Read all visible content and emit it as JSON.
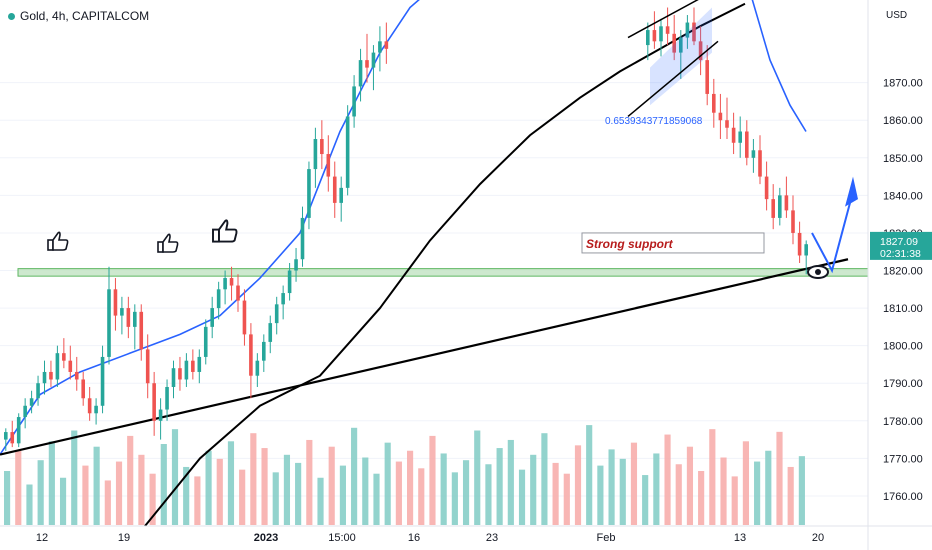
{
  "header": {
    "title": "Gold, 4h, CAPITALCOM",
    "currency": "USD"
  },
  "colors": {
    "up": "#26a69a",
    "down": "#ef5350",
    "ma_blue": "#2962ff",
    "ma_black": "#000000",
    "zone": "#c8e6c9",
    "zone_border": "#4caf50",
    "annotation": "#2962ff",
    "price_tag": "#26a69a"
  },
  "icons": {
    "thumbs": "thumbs-up-icon",
    "eye": "eye-icon"
  },
  "chart_data": {
    "type": "candlestick",
    "title": "Gold, 4h, CAPITALCOM",
    "currency": "USD",
    "ylim": [
      1752,
      1892
    ],
    "y_ticks": [
      1760,
      1770,
      1780,
      1790,
      1800,
      1810,
      1820,
      1830,
      1840,
      1850,
      1860,
      1870
    ],
    "y_tick_labels": [
      "1760.00",
      "1770.00",
      "1780.00",
      "1790.00",
      "1800.00",
      "1810.00",
      "1820.00",
      "1830.00",
      "1840.00",
      "1850.00",
      "1860.00",
      "1870.00"
    ],
    "x_tick_labels": [
      "12",
      "19",
      "2023",
      "15:00",
      "16",
      "23",
      "Feb",
      "13",
      "20"
    ],
    "last_price": "1827.09",
    "countdown": "02:31:38",
    "support_zone": [
      1818.5,
      1820.5
    ],
    "support_label": "Strong support",
    "fib_label": "0.6539343771859068",
    "candles": [
      [
        1775,
        1778,
        1772,
        1777
      ],
      [
        1777,
        1780,
        1773,
        1774
      ],
      [
        1774,
        1782,
        1773,
        1781
      ],
      [
        1781,
        1786,
        1778,
        1784
      ],
      [
        1784,
        1788,
        1782,
        1786
      ],
      [
        1786,
        1792,
        1784,
        1790
      ],
      [
        1790,
        1796,
        1787,
        1793
      ],
      [
        1793,
        1796,
        1789,
        1791
      ],
      [
        1791,
        1800,
        1789,
        1798
      ],
      [
        1798,
        1802,
        1794,
        1796
      ],
      [
        1796,
        1800,
        1791,
        1793
      ],
      [
        1793,
        1797,
        1788,
        1791
      ],
      [
        1791,
        1793,
        1784,
        1786
      ],
      [
        1786,
        1789,
        1780,
        1782
      ],
      [
        1782,
        1786,
        1779,
        1784
      ],
      [
        1784,
        1800,
        1782,
        1797
      ],
      [
        1797,
        1821,
        1795,
        1815
      ],
      [
        1815,
        1818,
        1804,
        1808
      ],
      [
        1808,
        1813,
        1803,
        1810
      ],
      [
        1810,
        1813,
        1802,
        1805
      ],
      [
        1805,
        1811,
        1799,
        1809
      ],
      [
        1809,
        1811,
        1796,
        1799
      ],
      [
        1799,
        1803,
        1786,
        1790
      ],
      [
        1790,
        1793,
        1776,
        1780
      ],
      [
        1780,
        1786,
        1775,
        1783
      ],
      [
        1783,
        1791,
        1780,
        1789
      ],
      [
        1789,
        1796,
        1786,
        1794
      ],
      [
        1794,
        1797,
        1788,
        1791
      ],
      [
        1791,
        1798,
        1789,
        1796
      ],
      [
        1796,
        1799,
        1791,
        1793
      ],
      [
        1793,
        1799,
        1790,
        1797
      ],
      [
        1797,
        1807,
        1795,
        1805
      ],
      [
        1805,
        1813,
        1802,
        1810
      ],
      [
        1810,
        1817,
        1807,
        1815
      ],
      [
        1815,
        1820,
        1811,
        1818
      ],
      [
        1818,
        1821,
        1812,
        1816
      ],
      [
        1816,
        1819,
        1809,
        1812
      ],
      [
        1812,
        1815,
        1800,
        1803
      ],
      [
        1803,
        1806,
        1786,
        1792
      ],
      [
        1792,
        1798,
        1789,
        1796
      ],
      [
        1796,
        1803,
        1793,
        1801
      ],
      [
        1801,
        1808,
        1798,
        1806
      ],
      [
        1806,
        1813,
        1803,
        1811
      ],
      [
        1811,
        1816,
        1807,
        1814
      ],
      [
        1814,
        1822,
        1812,
        1820
      ],
      [
        1820,
        1826,
        1817,
        1823
      ],
      [
        1823,
        1837,
        1821,
        1834
      ],
      [
        1834,
        1849,
        1831,
        1847
      ],
      [
        1847,
        1858,
        1842,
        1855
      ],
      [
        1855,
        1860,
        1847,
        1851
      ],
      [
        1851,
        1856,
        1841,
        1845
      ],
      [
        1845,
        1849,
        1834,
        1838
      ],
      [
        1838,
        1845,
        1833,
        1842
      ],
      [
        1842,
        1864,
        1840,
        1861
      ],
      [
        1861,
        1872,
        1858,
        1869
      ],
      [
        1869,
        1879,
        1865,
        1876
      ],
      [
        1876,
        1883,
        1870,
        1874
      ],
      [
        1874,
        1880,
        1868,
        1878
      ],
      [
        1878,
        1885,
        1873,
        1881
      ],
      [
        1881,
        1886,
        1875,
        1879
      ],
      [
        1879,
        1881,
        1870,
        1874
      ],
      [
        1874,
        1876,
        1861,
        1864
      ],
      [
        1864,
        1868,
        1857,
        1862
      ],
      [
        1862,
        1866,
        1852,
        1856
      ],
      [
        1856,
        1859,
        1846,
        1849
      ],
      [
        1849,
        1852,
        1840,
        1845
      ],
      [
        1845,
        1848,
        1834,
        1838
      ],
      [
        1838,
        1844,
        1832,
        1840
      ],
      [
        1840,
        1846,
        1836,
        1843
      ],
      [
        1843,
        1845,
        1828,
        1832
      ],
      [
        1832,
        1835,
        1818,
        1821
      ],
      [
        1821,
        1829,
        1819,
        1826
      ]
    ],
    "volumes": [
      40,
      55,
      30,
      48,
      62,
      35,
      70,
      44,
      58,
      33,
      47,
      66,
      52,
      38,
      60,
      71,
      43,
      36,
      55,
      49,
      62,
      41,
      68,
      57,
      39,
      52,
      46,
      63,
      35,
      58,
      44,
      72,
      50,
      38,
      61,
      47,
      55,
      42,
      66,
      53,
      39,
      48,
      70,
      45,
      57,
      63,
      41,
      52,
      68,
      46,
      38,
      59,
      74,
      44,
      56,
      49,
      61,
      37,
      53,
      67,
      45,
      58,
      40,
      71,
      50,
      36,
      62,
      47,
      55,
      69,
      43,
      51
    ],
    "ma_blue": [
      [
        0,
        1771
      ],
      [
        40,
        1787
      ],
      [
        80,
        1793
      ],
      [
        130,
        1798
      ],
      [
        180,
        1803
      ],
      [
        220,
        1808
      ],
      [
        260,
        1818
      ],
      [
        300,
        1830
      ],
      [
        340,
        1857
      ],
      [
        380,
        1878
      ],
      [
        410,
        1890
      ],
      [
        436,
        1896
      ]
    ],
    "ma_black": [
      [
        145,
        1752
      ],
      [
        200,
        1770
      ],
      [
        260,
        1784
      ],
      [
        320,
        1792
      ],
      [
        380,
        1810
      ],
      [
        430,
        1828
      ],
      [
        480,
        1843
      ],
      [
        530,
        1856
      ],
      [
        580,
        1866
      ],
      [
        620,
        1873
      ],
      [
        660,
        1879
      ],
      [
        700,
        1885
      ],
      [
        745,
        1891
      ]
    ],
    "ma_blue_right": [
      [
        748,
        1896
      ],
      [
        770,
        1876
      ],
      [
        790,
        1864
      ],
      [
        806,
        1857
      ]
    ],
    "trend_line": [
      [
        0,
        1771
      ],
      [
        848,
        1823
      ]
    ]
  }
}
